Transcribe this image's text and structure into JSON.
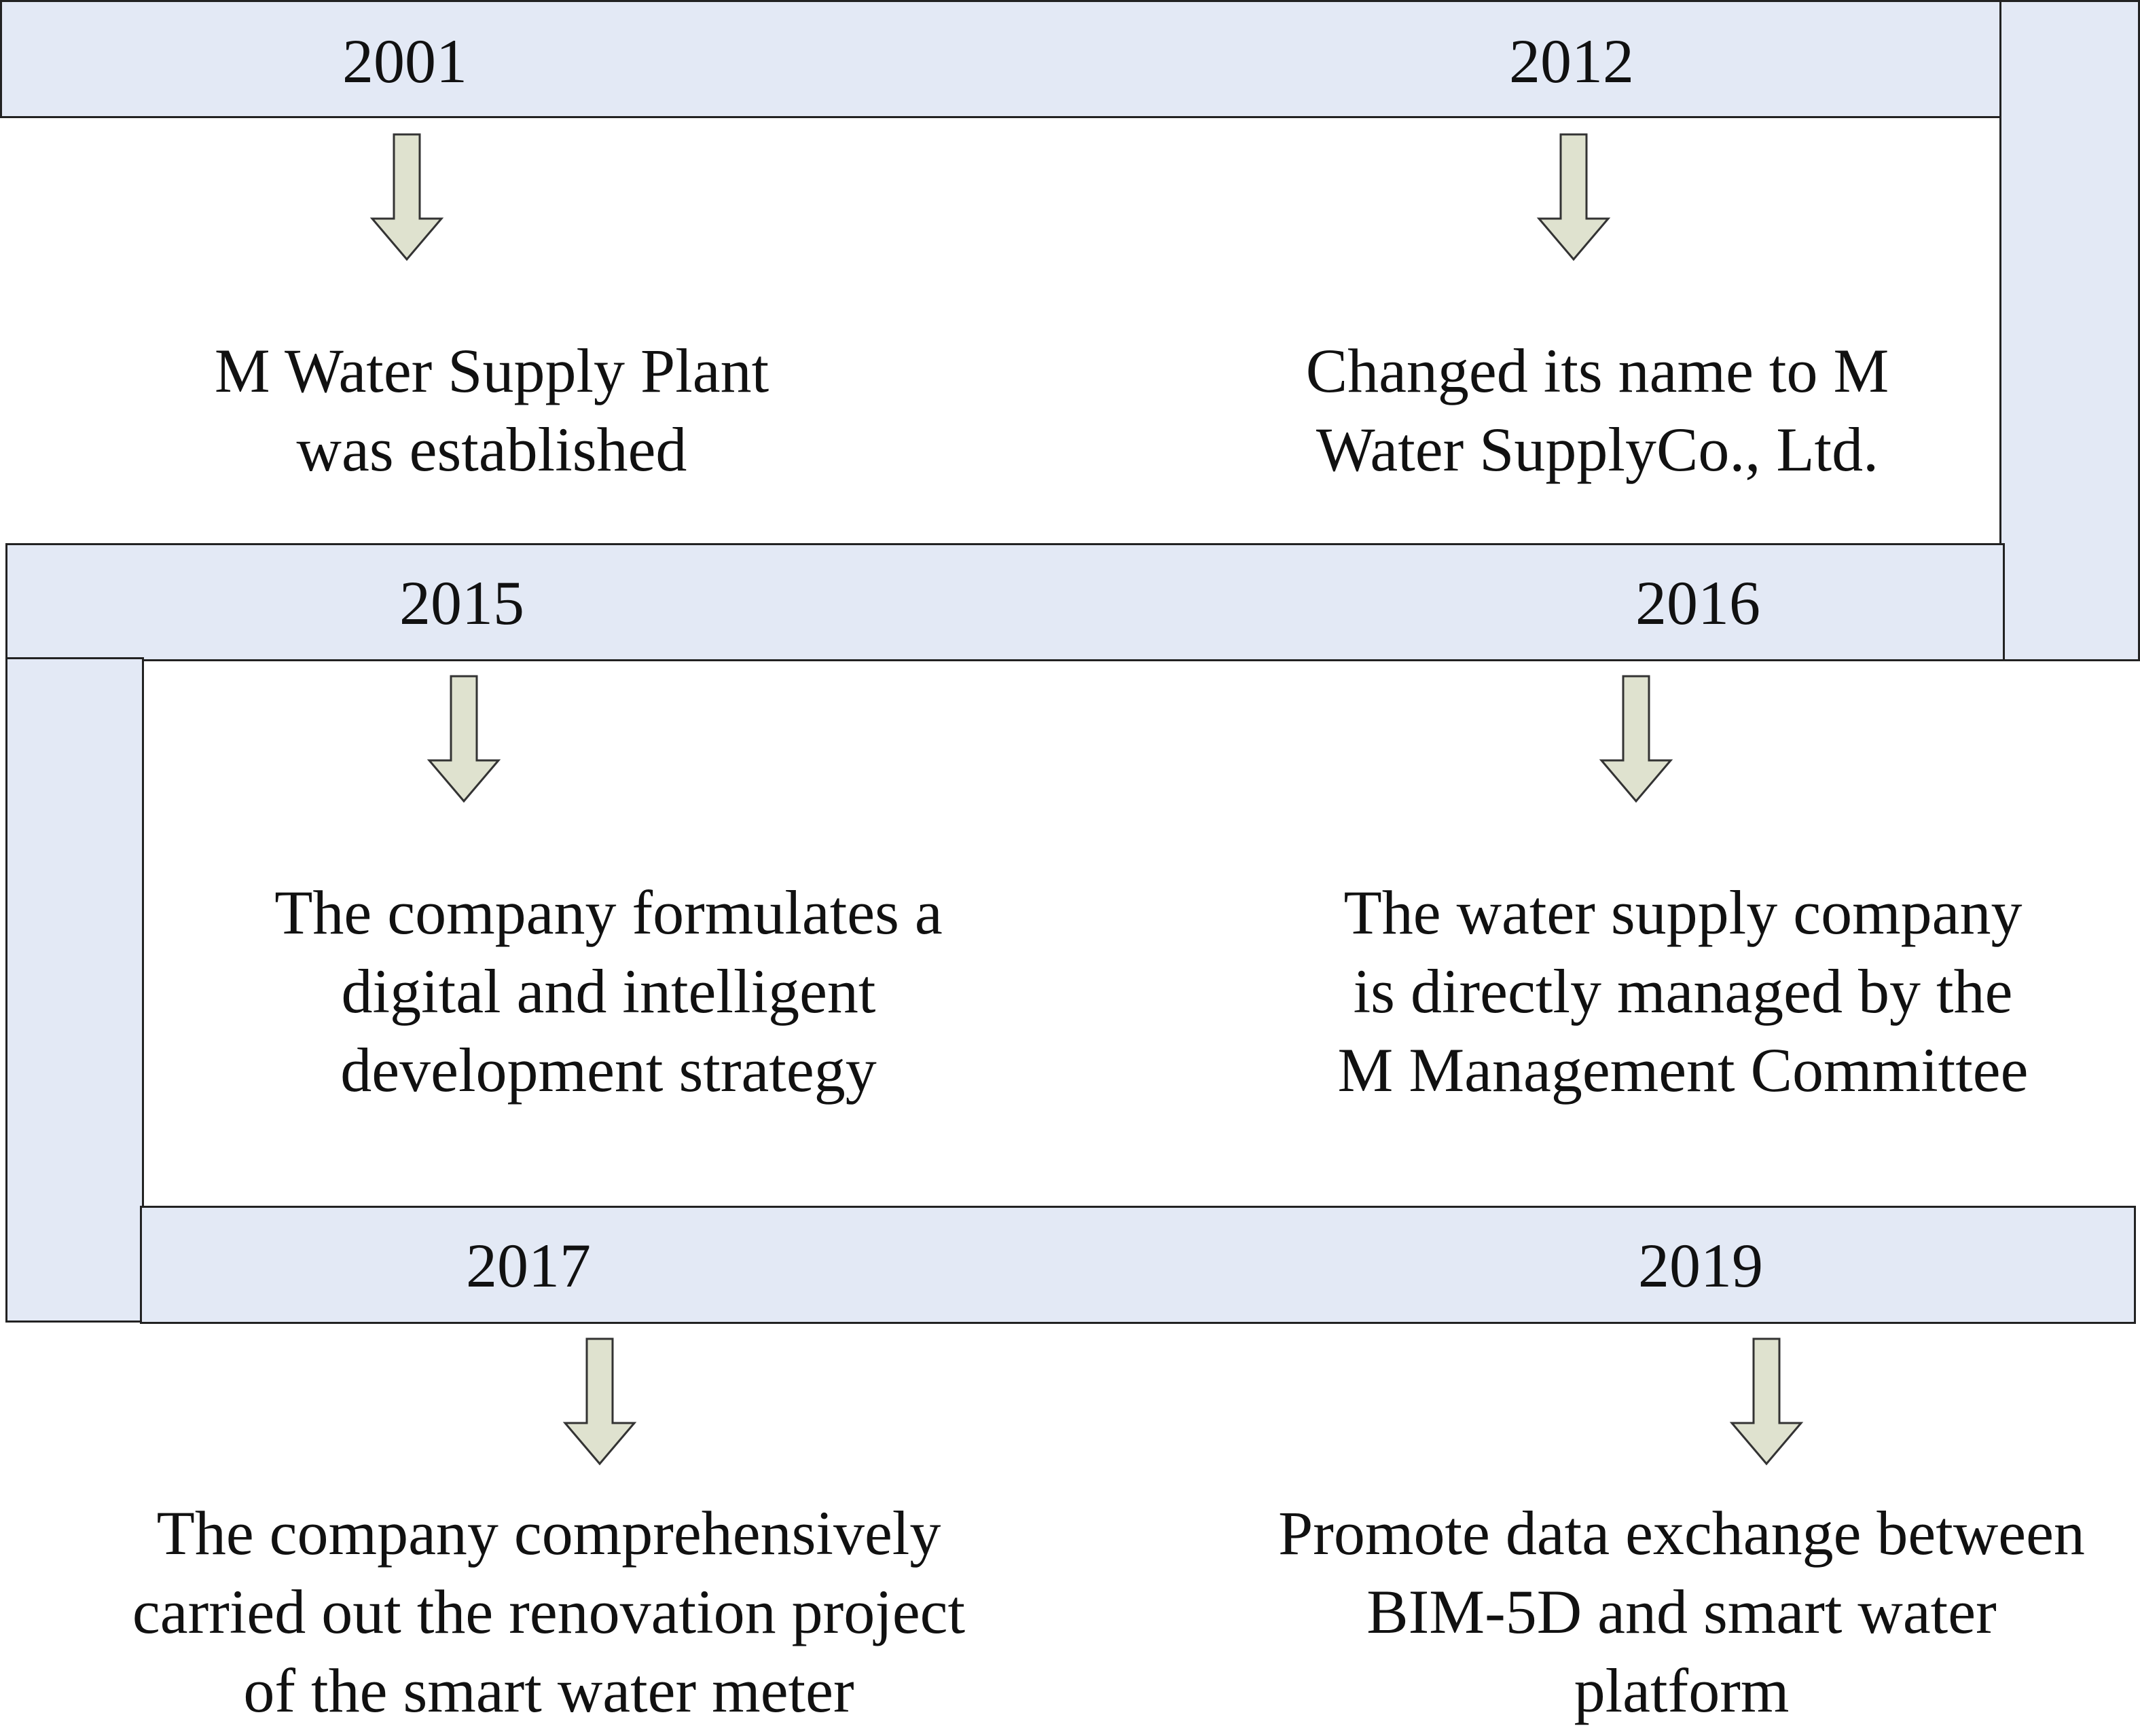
{
  "colors": {
    "bar_fill": "#e3e9f5",
    "bar_stroke": "#222222",
    "arrow_fill": "#dfe2cf",
    "arrow_stroke": "#333333",
    "text": "#111111"
  },
  "timeline": [
    {
      "year": "2001",
      "event_lines": [
        "M Water Supply Plant",
        "was established"
      ]
    },
    {
      "year": "2012",
      "event_lines": [
        "Changed its name to M",
        "Water SupplyCo., Ltd."
      ]
    },
    {
      "year": "2015",
      "event_lines": [
        "The company formulates a",
        "digital and intelligent",
        "development strategy"
      ]
    },
    {
      "year": "2016",
      "event_lines": [
        "The water supply company",
        "is directly managed by the",
        "M Management Committee"
      ]
    },
    {
      "year": "2017",
      "event_lines": [
        "The company comprehensively",
        "carried out the renovation project",
        "of the smart water meter"
      ]
    },
    {
      "year": "2019",
      "event_lines": [
        "Promote data exchange between",
        "BIM-5D and smart water",
        "platform"
      ]
    }
  ]
}
